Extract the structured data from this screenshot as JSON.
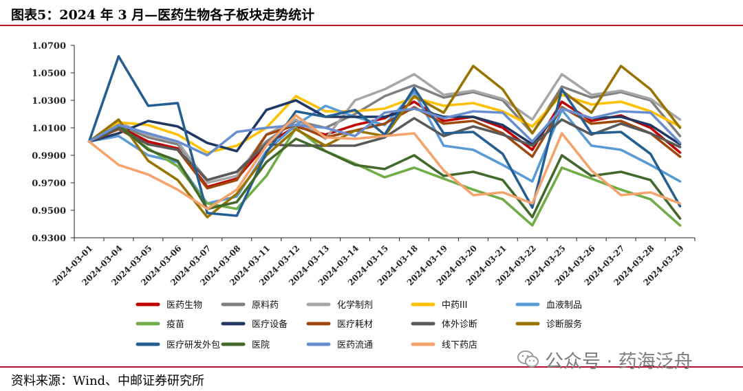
{
  "header": {
    "title": "图表5：2024 年 3 月—医药生物各子板块走势统计"
  },
  "footer": {
    "source": "资料来源：Wind、中邮证券研究所"
  },
  "watermark": {
    "text": "公众号 · 药海泛舟",
    "icon": "wechat-icon"
  },
  "chart_data": {
    "type": "line",
    "title": "",
    "xlabel": "",
    "ylabel": "",
    "ylim": [
      0.93,
      1.07
    ],
    "yticks": [
      "1.0700",
      "1.0500",
      "1.0300",
      "1.0100",
      "0.9900",
      "0.9700",
      "0.9500",
      "0.9300"
    ],
    "ytick_values": [
      1.07,
      1.05,
      1.03,
      1.01,
      0.99,
      0.97,
      0.95,
      0.93
    ],
    "grid": false,
    "legend_position": "bottom",
    "categories": [
      "2024-03-01",
      "2024-03-04",
      "2024-03-05",
      "2024-03-06",
      "2024-03-07",
      "2024-03-08",
      "2024-03-11",
      "2024-03-12",
      "2024-03-13",
      "2024-03-14",
      "2024-03-15",
      "2024-03-18",
      "2024-03-19",
      "2024-03-20",
      "2024-03-21",
      "2024-03-22",
      "2024-03-25",
      "2024-03-26",
      "2024-03-27",
      "2024-03-28",
      "2024-03-29"
    ],
    "series": [
      {
        "name": "医药生物",
        "color": "#c00000",
        "values": [
          1.0,
          1.011,
          1.0,
          0.995,
          0.967,
          0.973,
          0.998,
          1.011,
          1.005,
          1.012,
          1.017,
          1.029,
          1.015,
          1.018,
          1.01,
          0.994,
          1.029,
          1.015,
          1.019,
          1.01,
          0.992
        ]
      },
      {
        "name": "原料药",
        "color": "#7f7f7f",
        "values": [
          1.0,
          1.012,
          1.003,
          0.998,
          0.972,
          0.978,
          1.0,
          1.015,
          1.01,
          1.02,
          1.033,
          1.041,
          1.032,
          1.036,
          1.03,
          1.006,
          1.04,
          1.032,
          1.036,
          1.03,
          1.004
        ]
      },
      {
        "name": "化学制剂",
        "color": "#a6a6a6",
        "values": [
          1.0,
          1.014,
          1.005,
          1.0,
          0.97,
          0.975,
          1.005,
          1.016,
          1.002,
          1.03,
          1.038,
          1.049,
          1.034,
          1.037,
          1.031,
          1.016,
          1.049,
          1.034,
          1.037,
          1.031,
          1.016
        ]
      },
      {
        "name": "中药III",
        "color": "#ffc000",
        "values": [
          1.0,
          1.014,
          1.012,
          1.005,
          0.992,
          0.997,
          1.01,
          1.033,
          1.022,
          1.022,
          1.024,
          1.032,
          1.026,
          1.028,
          1.022,
          1.011,
          1.034,
          1.027,
          1.029,
          1.022,
          1.011
        ]
      },
      {
        "name": "血液制品",
        "color": "#5b9bd5",
        "values": [
          1.0,
          1.004,
          0.99,
          0.985,
          0.955,
          0.96,
          0.993,
          1.012,
          1.026,
          1.018,
          1.012,
          1.036,
          0.997,
          0.994,
          0.983,
          0.971,
          1.023,
          0.997,
          0.994,
          0.983,
          0.971
        ]
      },
      {
        "name": "疫苗",
        "color": "#70ad47",
        "values": [
          1.0,
          1.01,
          0.995,
          0.982,
          0.955,
          0.951,
          0.975,
          1.01,
          0.993,
          0.984,
          0.974,
          0.981,
          0.973,
          0.965,
          0.958,
          0.939,
          0.981,
          0.973,
          0.965,
          0.958,
          0.939
        ]
      },
      {
        "name": "医疗设备",
        "color": "#203864",
        "values": [
          1.0,
          1.006,
          1.015,
          1.011,
          0.999,
          0.993,
          1.023,
          1.03,
          1.018,
          1.018,
          1.018,
          1.024,
          1.018,
          1.018,
          1.012,
          0.998,
          1.024,
          1.017,
          1.018,
          1.012,
          0.998
        ]
      },
      {
        "name": "医疗耗材",
        "color": "#9e480e",
        "values": [
          1.0,
          1.009,
          0.998,
          0.994,
          0.966,
          0.972,
          1.005,
          1.012,
          1.003,
          1.008,
          1.013,
          1.025,
          1.013,
          1.015,
          1.006,
          0.989,
          1.025,
          1.013,
          1.015,
          1.006,
          0.989
        ]
      },
      {
        "name": "体外诊断",
        "color": "#595959",
        "values": [
          1.0,
          1.01,
          0.998,
          0.994,
          0.972,
          0.978,
          0.998,
          0.997,
          0.997,
          0.997,
          1.003,
          1.017,
          1.004,
          1.011,
          1.005,
          0.997,
          1.016,
          1.005,
          1.013,
          1.006,
          0.996
        ]
      },
      {
        "name": "诊断服务",
        "color": "#997300",
        "values": [
          1.0,
          1.016,
          0.986,
          0.972,
          0.945,
          0.962,
          0.99,
          1.009,
          0.997,
          1.008,
          1.004,
          1.033,
          1.021,
          1.055,
          1.038,
          1.006,
          1.037,
          1.021,
          1.055,
          1.038,
          1.01
        ]
      },
      {
        "name": "医疗研发外包",
        "color": "#255e91",
        "values": [
          1.0,
          1.062,
          1.026,
          1.028,
          0.948,
          0.946,
          0.992,
          1.022,
          1.018,
          1.023,
          1.005,
          1.039,
          1.006,
          1.007,
          0.991,
          0.952,
          1.038,
          1.006,
          1.007,
          0.991,
          0.953
        ]
      },
      {
        "name": "医院",
        "color": "#43682b",
        "values": [
          1.0,
          1.012,
          0.994,
          0.986,
          0.951,
          0.956,
          0.985,
          1.002,
          0.993,
          0.983,
          0.98,
          0.99,
          0.975,
          0.978,
          0.972,
          0.945,
          0.99,
          0.975,
          0.978,
          0.972,
          0.944
        ]
      },
      {
        "name": "医药流通",
        "color": "#698ed0",
        "values": [
          1.0,
          1.012,
          1.006,
          1.0,
          0.99,
          1.007,
          1.01,
          1.012,
          1.01,
          1.004,
          1.021,
          1.024,
          1.017,
          1.022,
          1.021,
          1.0,
          1.024,
          1.017,
          1.022,
          1.021,
          0.999
        ]
      },
      {
        "name": "线下药店",
        "color": "#f4a36c",
        "values": [
          1.0,
          0.983,
          0.976,
          0.965,
          0.951,
          0.965,
          0.997,
          1.019,
          1.003,
          1.002,
          1.004,
          1.006,
          0.979,
          0.961,
          0.963,
          0.955,
          1.006,
          0.979,
          0.961,
          0.963,
          0.955
        ]
      }
    ]
  }
}
